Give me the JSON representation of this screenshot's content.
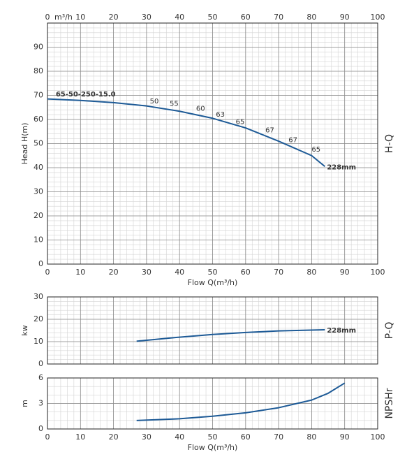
{
  "chart_data": [
    {
      "type": "line",
      "ylabel": "Head H(m)",
      "side_label": "H-Q",
      "xlabel": "Flow Q(m³/h)",
      "top_axis_unit": "m³/h",
      "show_xtick_labels": true,
      "grid": true,
      "minor_step": {
        "x": 2,
        "y": 2
      },
      "xlim": [
        0,
        100
      ],
      "xticks": [
        0,
        10,
        20,
        30,
        40,
        50,
        60,
        70,
        80,
        90,
        100
      ],
      "ylim": [
        0,
        100
      ],
      "yticks": [
        0,
        10,
        20,
        30,
        40,
        50,
        60,
        70,
        80,
        90
      ],
      "series": [
        {
          "name": "228mm",
          "color": "#1d5a96",
          "x": [
            0,
            10,
            20,
            30,
            40,
            50,
            60,
            70,
            80,
            84
          ],
          "values": [
            68.5,
            67.9,
            67,
            65.6,
            63.4,
            60.5,
            56.5,
            51,
            45,
            40.5
          ]
        }
      ],
      "annotations": [
        {
          "text": "65-50-250-15.0",
          "x": 2.5,
          "y": 70.5
        },
        {
          "text": "50",
          "x": 31,
          "y": 67.5
        },
        {
          "text": "55",
          "x": 37,
          "y": 66.5
        },
        {
          "text": "60",
          "x": 45,
          "y": 64.5
        },
        {
          "text": "63",
          "x": 51,
          "y": 62
        },
        {
          "text": "65",
          "x": 57,
          "y": 59
        },
        {
          "text": "67",
          "x": 66,
          "y": 55.5
        },
        {
          "text": "67",
          "x": 73,
          "y": 51.5
        },
        {
          "text": "65",
          "x": 80,
          "y": 47.5
        }
      ]
    },
    {
      "type": "line",
      "ylabel": "kw",
      "side_label": "P-Q",
      "show_xtick_labels": false,
      "grid": true,
      "minor_step": {
        "x": 2,
        "y": 2
      },
      "xlim": [
        0,
        100
      ],
      "xticks": [
        0,
        10,
        20,
        30,
        40,
        50,
        60,
        70,
        80,
        90,
        100
      ],
      "ylim": [
        0,
        30
      ],
      "yticks": [
        0,
        10,
        20,
        30
      ],
      "series": [
        {
          "name": "228mm",
          "color": "#1d5a96",
          "x": [
            27,
            40,
            50,
            60,
            70,
            84
          ],
          "values": [
            10.2,
            12,
            13.2,
            14.1,
            14.8,
            15.3
          ]
        }
      ]
    },
    {
      "type": "line",
      "ylabel": "m",
      "side_label": "NPSHr",
      "xlabel": "Flow Q(m³/h)",
      "show_xtick_labels": true,
      "grid": true,
      "minor_step": {
        "x": 2,
        "y": 1
      },
      "xlim": [
        0,
        100
      ],
      "xticks": [
        0,
        10,
        20,
        30,
        40,
        50,
        60,
        70,
        80,
        90,
        100
      ],
      "ylim": [
        0,
        6
      ],
      "yticks": [
        0,
        3,
        6
      ],
      "series": [
        {
          "name": null,
          "color": "#1d5a96",
          "x": [
            27,
            40,
            50,
            60,
            70,
            80,
            85,
            90
          ],
          "values": [
            1,
            1.2,
            1.5,
            1.9,
            2.5,
            3.4,
            4.2,
            5.4
          ]
        }
      ]
    }
  ]
}
